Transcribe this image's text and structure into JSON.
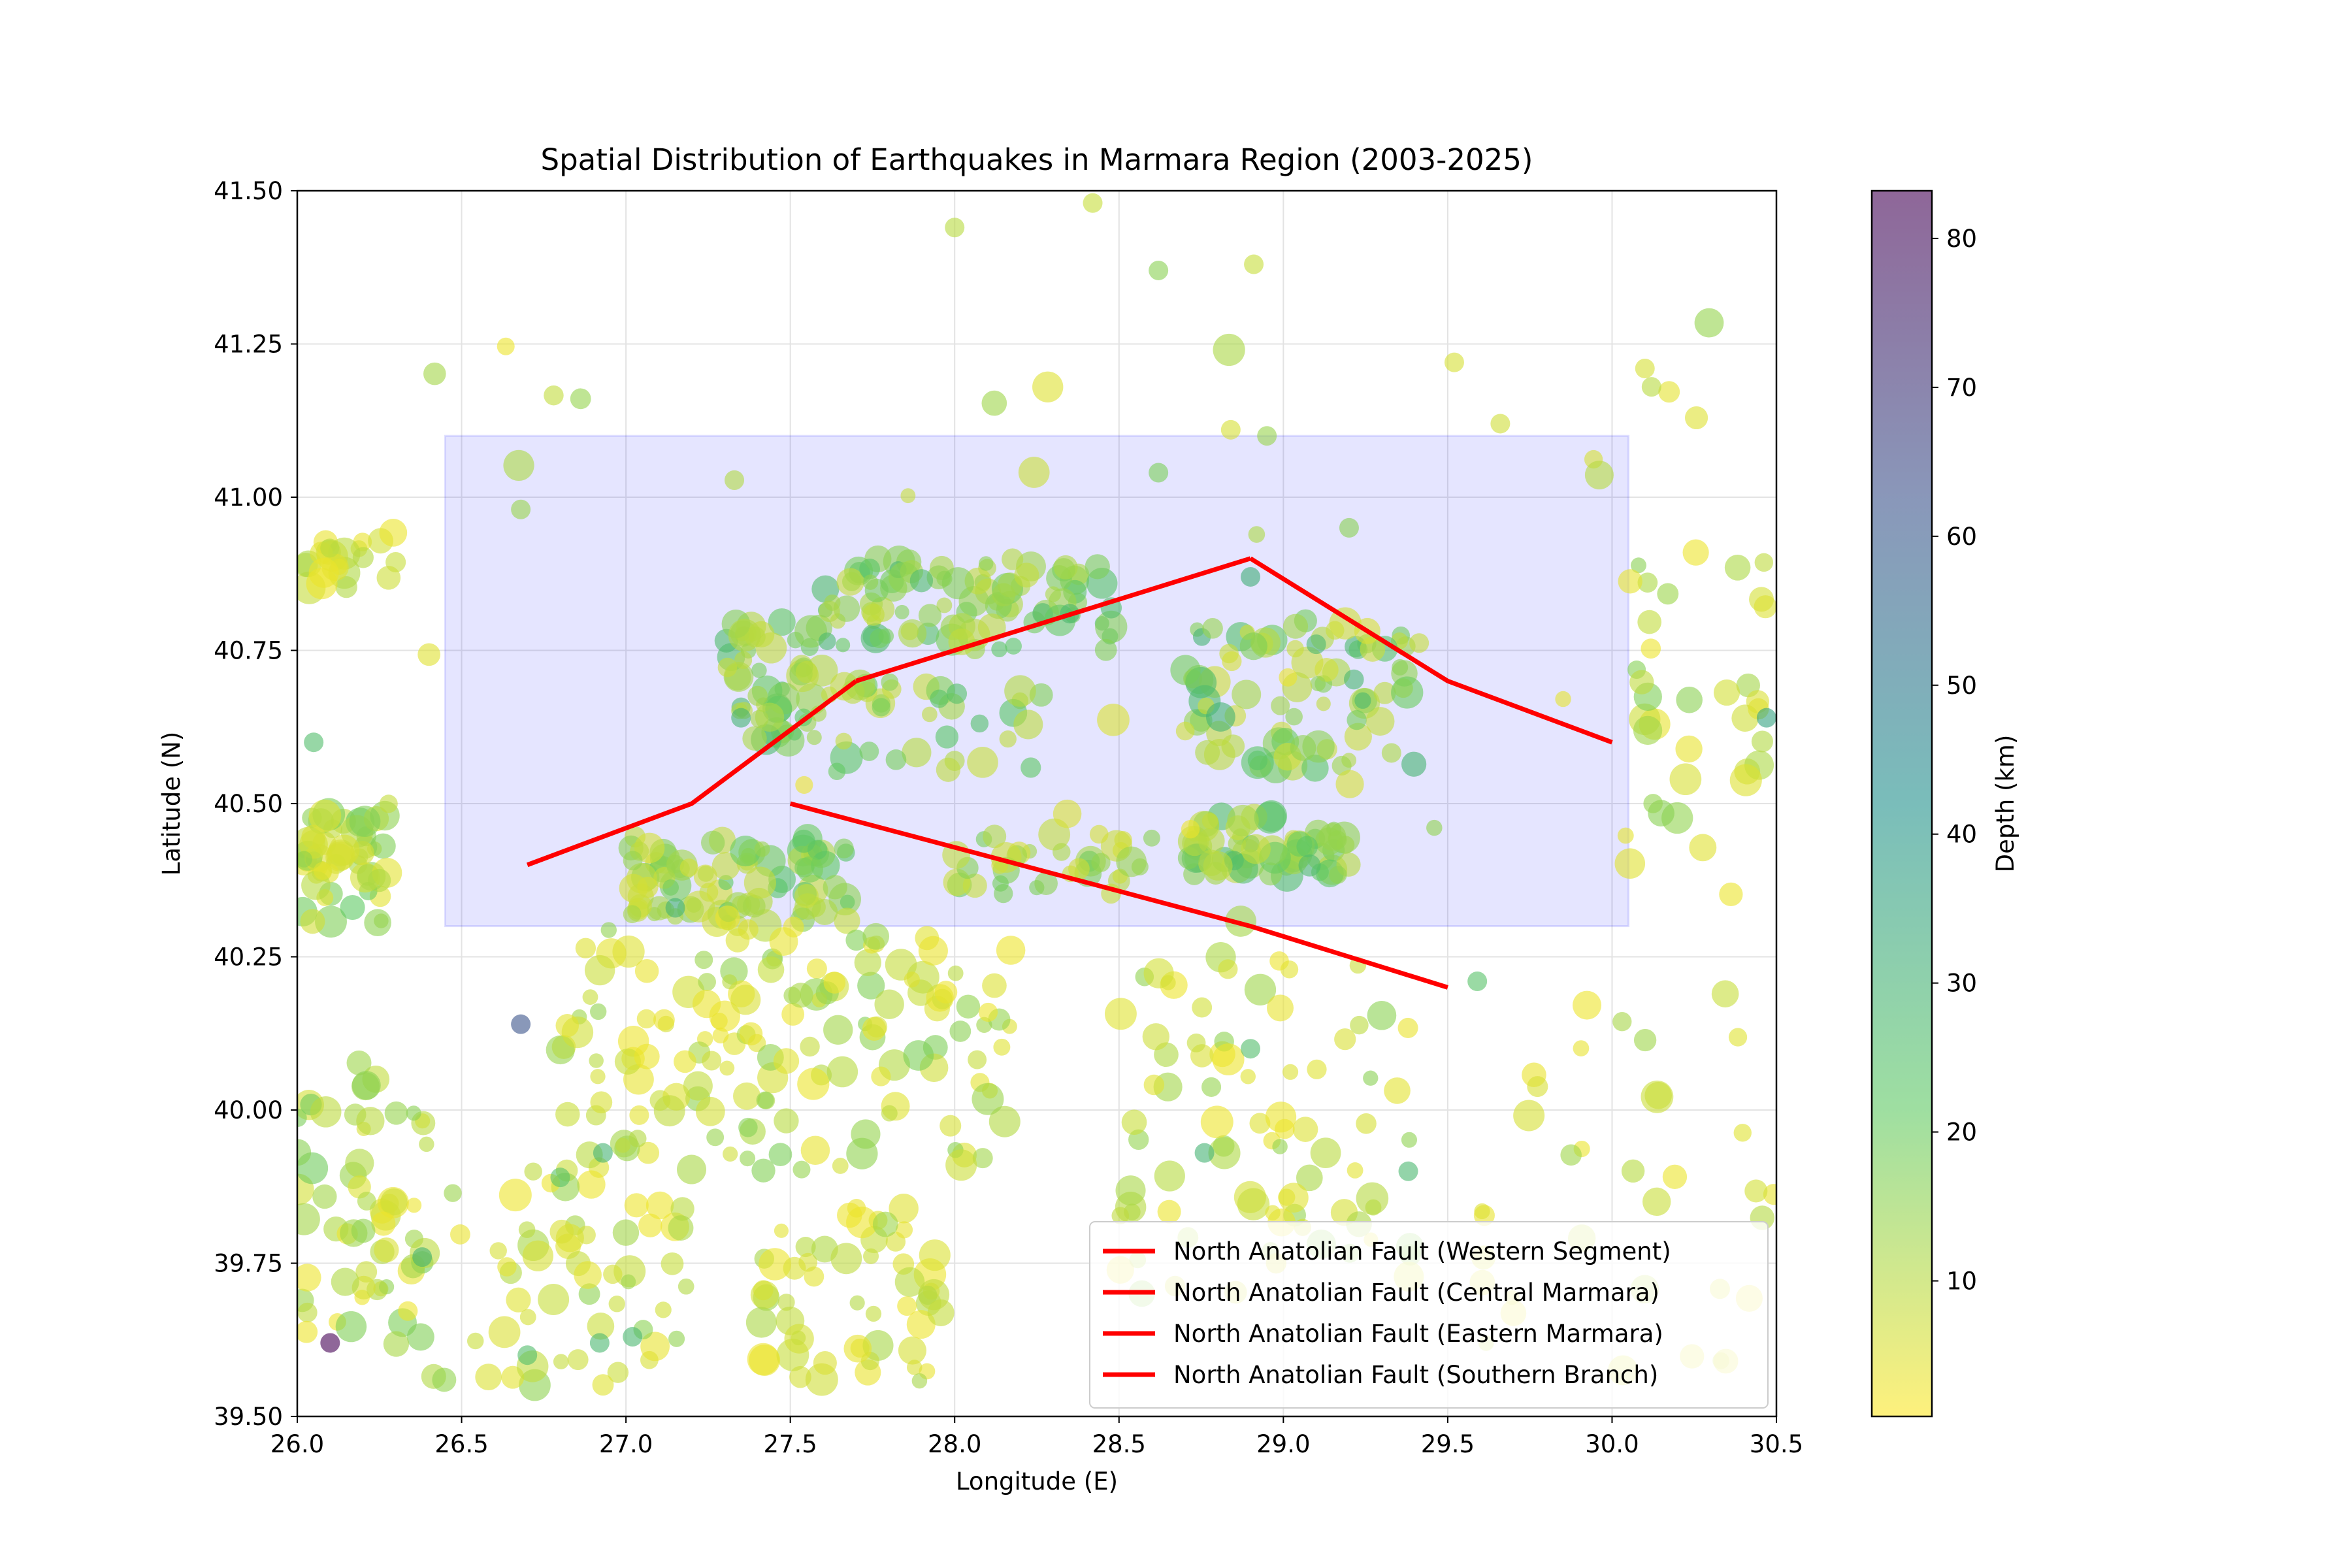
{
  "chart_data": {
    "type": "scatter",
    "title": "Spatial Distribution of Earthquakes in Marmara Region (2003-2025)",
    "xlabel": "Longitude (E)",
    "ylabel": "Latitude (N)",
    "xlim": [
      26.0,
      30.5
    ],
    "ylim": [
      39.5,
      41.5
    ],
    "xticks": [
      "26.0",
      "26.5",
      "27.0",
      "27.5",
      "28.0",
      "28.5",
      "29.0",
      "29.5",
      "30.0",
      "30.5"
    ],
    "yticks": [
      "39.50",
      "39.75",
      "40.00",
      "40.25",
      "40.50",
      "40.75",
      "41.00",
      "41.25",
      "41.50"
    ],
    "grid": true,
    "colormap": "viridis_r",
    "colorbar": {
      "label": "Depth (km)",
      "range": [
        0.9,
        83.2
      ],
      "ticks": [
        "10",
        "20",
        "30",
        "40",
        "50",
        "60",
        "70",
        "80"
      ],
      "colors": [
        "#fde725",
        "#5ec962",
        "#21918c",
        "#3b528b",
        "#440154"
      ]
    },
    "study_area": {
      "lon": [
        26.45,
        30.05
      ],
      "lat": [
        40.3,
        41.1
      ],
      "fill": "#0000ff",
      "opacity": 0.1
    },
    "legend": {
      "position": "lower right",
      "entries": [
        "North Anatolian Fault (Western Segment)",
        "North Anatolian Fault (Central Marmara)",
        "North Anatolian Fault (Eastern Marmara)",
        "North Anatolian Fault (Southern Branch)"
      ]
    },
    "fault_lines": [
      {
        "name": "North Anatolian Fault (Western Segment)",
        "color": "#ff0000",
        "points": [
          [
            26.7,
            40.4
          ],
          [
            27.2,
            40.5
          ],
          [
            27.7,
            40.7
          ]
        ]
      },
      {
        "name": "North Anatolian Fault (Central Marmara)",
        "color": "#ff0000",
        "points": [
          [
            27.7,
            40.7
          ],
          [
            28.9,
            40.9
          ]
        ]
      },
      {
        "name": "North Anatolian Fault (Eastern Marmara)",
        "color": "#ff0000",
        "points": [
          [
            28.9,
            40.9
          ],
          [
            29.5,
            40.7
          ],
          [
            30.0,
            40.6
          ]
        ]
      },
      {
        "name": "North Anatolian Fault (Southern Branch)",
        "color": "#ff0000",
        "points": [
          [
            27.5,
            40.5
          ],
          [
            28.9,
            40.3
          ],
          [
            29.5,
            40.2
          ]
        ]
      }
    ],
    "clusters": [
      {
        "lon": [
          26.0,
          26.3
        ],
        "lat": [
          40.3,
          40.5
        ],
        "count": 55,
        "depth": [
          4,
          22
        ]
      },
      {
        "lon": [
          26.0,
          26.3
        ],
        "lat": [
          40.85,
          40.95
        ],
        "count": 22,
        "depth": [
          3,
          12
        ]
      },
      {
        "lon": [
          26.0,
          26.4
        ],
        "lat": [
          39.6,
          40.1
        ],
        "count": 60,
        "depth": [
          3,
          20
        ]
      },
      {
        "lon": [
          27.3,
          27.6
        ],
        "lat": [
          40.6,
          40.8
        ],
        "count": 50,
        "depth": [
          8,
          30
        ]
      },
      {
        "lon": [
          27.6,
          28.5
        ],
        "lat": [
          40.75,
          40.9
        ],
        "count": 90,
        "depth": [
          8,
          28
        ]
      },
      {
        "lon": [
          27.6,
          28.3
        ],
        "lat": [
          40.55,
          40.7
        ],
        "count": 35,
        "depth": [
          8,
          26
        ]
      },
      {
        "lon": [
          28.7,
          29.4
        ],
        "lat": [
          40.55,
          40.8
        ],
        "count": 80,
        "depth": [
          6,
          30
        ]
      },
      {
        "lon": [
          28.7,
          29.2
        ],
        "lat": [
          40.38,
          40.48
        ],
        "count": 60,
        "depth": [
          8,
          28
        ]
      },
      {
        "lon": [
          27.0,
          27.3
        ],
        "lat": [
          40.3,
          40.45
        ],
        "count": 40,
        "depth": [
          6,
          22
        ]
      },
      {
        "lon": [
          27.3,
          27.7
        ],
        "lat": [
          40.3,
          40.45
        ],
        "count": 45,
        "depth": [
          8,
          24
        ]
      },
      {
        "lon": [
          28.0,
          28.6
        ],
        "lat": [
          40.35,
          40.45
        ],
        "count": 35,
        "depth": [
          6,
          20
        ]
      },
      {
        "lon": [
          26.8,
          27.4
        ],
        "lat": [
          39.9,
          40.3
        ],
        "count": 70,
        "depth": [
          3,
          18
        ]
      },
      {
        "lon": [
          27.4,
          28.2
        ],
        "lat": [
          39.9,
          40.3
        ],
        "count": 80,
        "depth": [
          3,
          18
        ]
      },
      {
        "lon": [
          26.4,
          27.2
        ],
        "lat": [
          39.55,
          39.9
        ],
        "count": 55,
        "depth": [
          3,
          16
        ]
      },
      {
        "lon": [
          27.4,
          28.0
        ],
        "lat": [
          39.55,
          39.85
        ],
        "count": 55,
        "depth": [
          3,
          14
        ]
      },
      {
        "lon": [
          28.5,
          29.4
        ],
        "lat": [
          39.7,
          40.25
        ],
        "count": 80,
        "depth": [
          3,
          16
        ]
      },
      {
        "lon": [
          29.6,
          30.5
        ],
        "lat": [
          39.55,
          40.2
        ],
        "count": 35,
        "depth": [
          3,
          14
        ]
      },
      {
        "lon": [
          30.0,
          30.5
        ],
        "lat": [
          40.4,
          40.9
        ],
        "count": 30,
        "depth": [
          3,
          18
        ]
      },
      {
        "lon": [
          26.3,
          30.4
        ],
        "lat": [
          40.3,
          41.3
        ],
        "count": 40,
        "depth": [
          3,
          16
        ]
      }
    ],
    "points": [
      {
        "lon": 26.68,
        "lat": 40.14,
        "depth": 62
      },
      {
        "lon": 26.1,
        "lat": 39.62,
        "depth": 83
      },
      {
        "lon": 28.0,
        "lat": 41.44,
        "depth": 10
      },
      {
        "lon": 28.42,
        "lat": 41.48,
        "depth": 8
      },
      {
        "lon": 28.62,
        "lat": 41.37,
        "depth": 16
      },
      {
        "lon": 28.91,
        "lat": 41.38,
        "depth": 8
      },
      {
        "lon": 29.52,
        "lat": 41.22,
        "depth": 6
      },
      {
        "lon": 30.1,
        "lat": 41.21,
        "depth": 6
      },
      {
        "lon": 30.12,
        "lat": 41.18,
        "depth": 10
      },
      {
        "lon": 29.66,
        "lat": 41.12,
        "depth": 7
      },
      {
        "lon": 28.84,
        "lat": 41.11,
        "depth": 6
      },
      {
        "lon": 28.95,
        "lat": 41.1,
        "depth": 14
      },
      {
        "lon": 28.62,
        "lat": 41.04,
        "depth": 18
      },
      {
        "lon": 26.68,
        "lat": 40.98,
        "depth": 14
      },
      {
        "lon": 29.2,
        "lat": 40.95,
        "depth": 16
      },
      {
        "lon": 28.9,
        "lat": 40.87,
        "depth": 32
      },
      {
        "lon": 30.47,
        "lat": 40.64,
        "depth": 36
      },
      {
        "lon": 29.59,
        "lat": 40.21,
        "depth": 24
      },
      {
        "lon": 26.38,
        "lat": 39.76,
        "depth": 30
      },
      {
        "lon": 26.8,
        "lat": 39.89,
        "depth": 24
      },
      {
        "lon": 26.93,
        "lat": 39.93,
        "depth": 30
      },
      {
        "lon": 26.7,
        "lat": 39.6,
        "depth": 26
      },
      {
        "lon": 26.92,
        "lat": 39.62,
        "depth": 28
      },
      {
        "lon": 27.02,
        "lat": 39.63,
        "depth": 28
      },
      {
        "lon": 28.76,
        "lat": 39.93,
        "depth": 30
      },
      {
        "lon": 29.38,
        "lat": 39.9,
        "depth": 28
      },
      {
        "lon": 28.9,
        "lat": 40.1,
        "depth": 26
      },
      {
        "lon": 26.05,
        "lat": 40.6,
        "depth": 26
      },
      {
        "lon": 27.15,
        "lat": 40.33,
        "depth": 30
      },
      {
        "lon": 27.35,
        "lat": 40.64,
        "depth": 30
      },
      {
        "lon": 28.35,
        "lat": 40.81,
        "depth": 28
      },
      {
        "lon": 29.1,
        "lat": 40.76,
        "depth": 28
      }
    ]
  }
}
